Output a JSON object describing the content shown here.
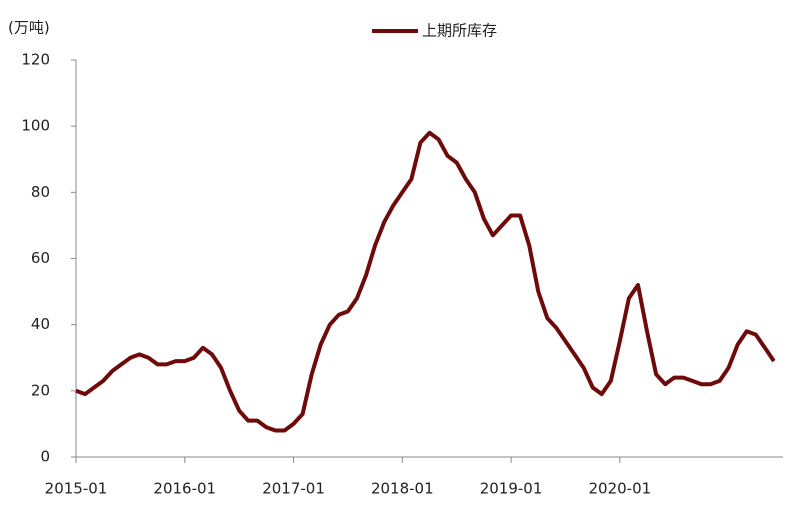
{
  "chart_data": {
    "type": "line",
    "y_label": "(万吨)",
    "x": [
      "2015-01",
      "2015-02",
      "2015-03",
      "2015-04",
      "2015-05",
      "2015-06",
      "2015-07",
      "2015-08",
      "2015-09",
      "2015-10",
      "2015-11",
      "2015-12",
      "2016-01",
      "2016-02",
      "2016-03",
      "2016-04",
      "2016-05",
      "2016-06",
      "2016-07",
      "2016-08",
      "2016-09",
      "2016-10",
      "2016-11",
      "2016-12",
      "2017-01",
      "2017-02",
      "2017-03",
      "2017-04",
      "2017-05",
      "2017-06",
      "2017-07",
      "2017-08",
      "2017-09",
      "2017-10",
      "2017-11",
      "2017-12",
      "2018-01",
      "2018-02",
      "2018-03",
      "2018-04",
      "2018-05",
      "2018-06",
      "2018-07",
      "2018-08",
      "2018-09",
      "2018-10",
      "2018-11",
      "2018-12",
      "2019-01",
      "2019-02",
      "2019-03",
      "2019-04",
      "2019-05",
      "2019-06",
      "2019-07",
      "2019-08",
      "2019-09",
      "2019-10",
      "2019-11",
      "2019-12",
      "2020-01",
      "2020-02",
      "2020-03",
      "2020-04",
      "2020-05",
      "2020-06",
      "2020-07",
      "2020-08",
      "2020-09",
      "2020-10",
      "2020-11",
      "2020-12",
      "2021-01",
      "2021-02",
      "2021-03",
      "2021-04",
      "2021-05",
      "2021-06"
    ],
    "series": [
      {
        "name": "上期所库存",
        "color": "#6e0a0a",
        "values": [
          20,
          19,
          21,
          23,
          26,
          28,
          30,
          31,
          30,
          28,
          28,
          29,
          29,
          30,
          33,
          31,
          27,
          20,
          14,
          11,
          11,
          9,
          8,
          8,
          10,
          13,
          25,
          34,
          40,
          43,
          44,
          48,
          55,
          64,
          71,
          76,
          80,
          84,
          95,
          98,
          96,
          91,
          89,
          84,
          80,
          72,
          67,
          70,
          73,
          73,
          64,
          50,
          42,
          39,
          35,
          31,
          27,
          21,
          19,
          23,
          35,
          48,
          52,
          38,
          25,
          22,
          24,
          24,
          23,
          22,
          22,
          23,
          27,
          34,
          38,
          37,
          33,
          29
        ]
      }
    ],
    "xlim": [
      "2015-01",
      "2021-07"
    ],
    "xticks": [
      "2015-01",
      "2016-01",
      "2017-01",
      "2018-01",
      "2019-01",
      "2020-01"
    ],
    "ylim": [
      0,
      120
    ],
    "yticks": [
      0,
      20,
      40,
      60,
      80,
      100,
      120
    ],
    "grid": false,
    "legend": "top"
  }
}
